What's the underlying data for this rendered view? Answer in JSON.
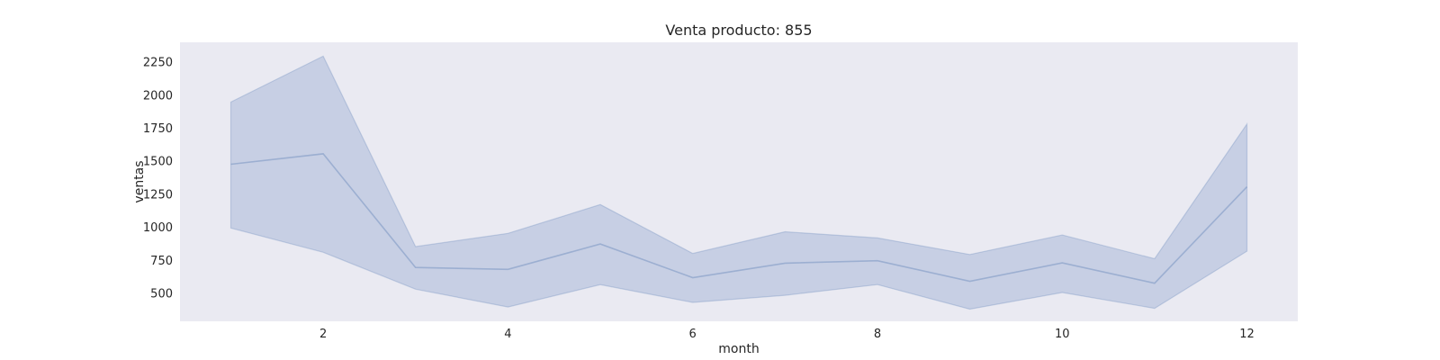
{
  "chart_data": {
    "type": "line",
    "title": "Venta producto: 855",
    "xlabel": "month",
    "ylabel": "ventas",
    "xlim": [
      0.45,
      12.55
    ],
    "ylim": [
      290,
      2400
    ],
    "xticks": [
      2,
      4,
      6,
      8,
      10,
      12
    ],
    "yticks": [
      500,
      750,
      1000,
      1250,
      1500,
      1750,
      2000,
      2250
    ],
    "grid": false,
    "legend": "none",
    "x": [
      1,
      2,
      3,
      4,
      5,
      6,
      7,
      8,
      9,
      10,
      11,
      12
    ],
    "series": [
      {
        "values": [
          1478,
          1557,
          697,
          683,
          875,
          620,
          730,
          748,
          593,
          732,
          578,
          1307
        ],
        "lower": [
          995,
          812,
          533,
          398,
          567,
          433,
          487,
          568,
          382,
          508,
          388,
          820
        ],
        "upper": [
          1948,
          2295,
          855,
          955,
          1173,
          803,
          967,
          920,
          795,
          943,
          763,
          1782
        ]
      }
    ],
    "colors": {
      "background": "#eaeaf2",
      "line": "#4c72b0",
      "band": "#4c72b0"
    }
  }
}
